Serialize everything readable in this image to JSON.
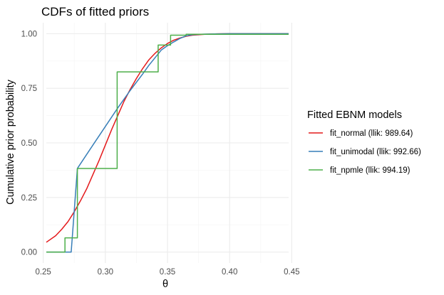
{
  "chart_data": {
    "type": "line",
    "title": "CDFs of fitted priors",
    "xlabel": "θ",
    "ylabel": "Cumulative prior probability",
    "xlim": [
      0.2525,
      0.4475
    ],
    "ylim": [
      -0.05,
      1.05
    ],
    "x_ticks": [
      0.25,
      0.3,
      0.35,
      0.4,
      0.45
    ],
    "x_tick_labels": [
      "0.25",
      "0.30",
      "0.35",
      "0.40",
      "0.45"
    ],
    "y_ticks": [
      0,
      0.25,
      0.5,
      0.75,
      1.0
    ],
    "y_tick_labels": [
      "0.00",
      "0.25",
      "0.50",
      "0.75",
      "1.00"
    ],
    "grid": true,
    "legend": {
      "title": "Fitted EBNM models",
      "placement": "right"
    },
    "series": [
      {
        "name": "fit_normal (llik: 989.64)",
        "color": "#e41a1c",
        "x": [
          0.2525,
          0.26,
          0.265,
          0.27,
          0.275,
          0.28,
          0.285,
          0.29,
          0.295,
          0.3,
          0.305,
          0.31,
          0.315,
          0.32,
          0.325,
          0.33,
          0.335,
          0.34,
          0.345,
          0.35,
          0.355,
          0.36,
          0.365,
          0.37,
          0.38,
          0.39,
          0.4,
          0.42,
          0.4475
        ],
        "y": [
          0.045,
          0.075,
          0.105,
          0.14,
          0.185,
          0.235,
          0.29,
          0.355,
          0.42,
          0.49,
          0.56,
          0.625,
          0.69,
          0.745,
          0.795,
          0.84,
          0.88,
          0.91,
          0.935,
          0.955,
          0.97,
          0.98,
          0.988,
          0.993,
          0.997,
          0.999,
          1.0,
          1.0,
          1.0
        ]
      },
      {
        "name": "fit_unimodal (llik: 992.66)",
        "color": "#377eb8",
        "x": [
          0.2525,
          0.2725,
          0.2775,
          0.29,
          0.3,
          0.31,
          0.32,
          0.33,
          0.335,
          0.34,
          0.345,
          0.35,
          0.355,
          0.36,
          0.365,
          0.37,
          0.38,
          0.4,
          0.43,
          0.4475
        ],
        "y": [
          0.0,
          0.0,
          0.383,
          0.49,
          0.575,
          0.66,
          0.74,
          0.815,
          0.855,
          0.89,
          0.925,
          0.945,
          0.962,
          0.978,
          0.99,
          0.995,
          0.998,
          1.0,
          1.0,
          1.0
        ]
      },
      {
        "name": "fit_npmle (llik: 994.19)",
        "color": "#4daf4a",
        "x": [
          0.2525,
          0.2625,
          0.2625,
          0.2675,
          0.2675,
          0.2725,
          0.2725,
          0.2775,
          0.2775,
          0.3095,
          0.3095,
          0.3385,
          0.3385,
          0.3425,
          0.3425,
          0.3525,
          0.3525,
          0.365,
          0.365,
          0.4475
        ],
        "y": [
          0.0,
          0.0,
          0.0,
          0.0,
          0.065,
          0.065,
          0.065,
          0.065,
          0.383,
          0.383,
          0.825,
          0.825,
          0.825,
          0.825,
          0.948,
          0.948,
          0.993,
          0.993,
          0.997,
          0.997
        ]
      }
    ]
  }
}
